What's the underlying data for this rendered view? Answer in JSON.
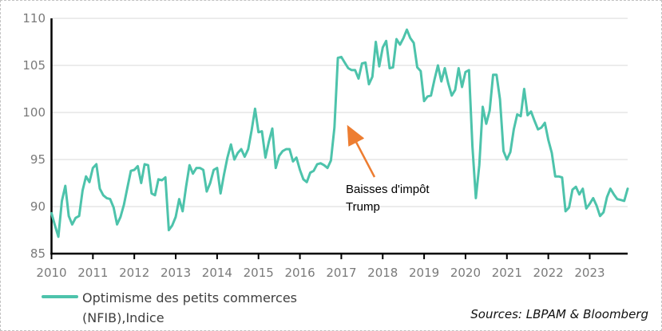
{
  "chart_data": {
    "type": "line",
    "title": "",
    "xlabel": "",
    "ylabel": "",
    "x_start": "2010-01",
    "x_end": "2023-12",
    "x_tick_labels": [
      "2010",
      "2011",
      "2012",
      "2013",
      "2014",
      "2015",
      "2016",
      "2017",
      "2018",
      "2019",
      "2020",
      "2021",
      "2022",
      "2023"
    ],
    "y_ticks": [
      85,
      90,
      95,
      100,
      105,
      110
    ],
    "ylim": [
      85,
      110
    ],
    "grid": "horizontal",
    "legend_position": "bottom-left",
    "series": [
      {
        "name": "Optimisme des petits commerces (NFIB),Indice",
        "color": "#4dc3ab",
        "frequency": "monthly",
        "values": [
          89.3,
          88.0,
          86.8,
          90.6,
          92.2,
          89.0,
          88.1,
          88.8,
          89.0,
          91.7,
          93.2,
          92.6,
          94.1,
          94.5,
          91.9,
          91.2,
          90.9,
          90.8,
          89.9,
          88.1,
          88.9,
          90.2,
          92.0,
          93.8,
          93.9,
          94.3,
          92.5,
          94.5,
          94.4,
          91.4,
          91.2,
          92.9,
          92.8,
          93.1,
          87.5,
          88.0,
          88.9,
          90.8,
          89.5,
          92.1,
          94.4,
          93.5,
          94.1,
          94.1,
          93.9,
          91.6,
          92.5,
          93.9,
          94.1,
          91.4,
          93.4,
          95.2,
          96.6,
          95.0,
          95.7,
          96.1,
          95.3,
          96.1,
          98.1,
          100.4,
          97.9,
          98.0,
          95.2,
          96.9,
          98.3,
          94.1,
          95.4,
          95.9,
          96.1,
          96.1,
          94.8,
          95.2,
          93.9,
          92.9,
          92.6,
          93.6,
          93.8,
          94.5,
          94.6,
          94.4,
          94.1,
          94.9,
          98.4,
          105.8,
          105.9,
          105.3,
          104.7,
          104.5,
          104.5,
          103.6,
          105.2,
          105.3,
          103.0,
          103.8,
          107.5,
          104.9,
          106.9,
          107.6,
          104.7,
          104.8,
          107.8,
          107.2,
          107.9,
          108.8,
          107.9,
          107.4,
          104.8,
          104.4,
          101.2,
          101.7,
          101.8,
          103.5,
          105.0,
          103.3,
          104.7,
          103.1,
          101.8,
          102.4,
          104.7,
          102.7,
          104.3,
          104.5,
          96.4,
          90.9,
          94.4,
          100.6,
          98.8,
          100.2,
          104.0,
          104.0,
          101.4,
          95.9,
          95.0,
          95.8,
          98.2,
          99.8,
          99.6,
          102.5,
          99.7,
          100.1,
          99.1,
          98.2,
          98.4,
          98.9,
          97.1,
          95.7,
          93.2,
          93.2,
          93.1,
          89.5,
          89.9,
          91.8,
          92.1,
          91.3,
          91.9,
          89.8,
          90.3,
          90.9,
          90.1,
          89.0,
          89.4,
          91.0,
          91.9,
          91.3,
          90.8,
          90.7,
          90.6,
          91.9
        ]
      }
    ],
    "annotations": [
      {
        "text": "Baisses d'impôt Trump",
        "arrow_color": "#ED7D31"
      }
    ]
  },
  "legend": {
    "label_line1": "Optimisme des petits commerces",
    "label_line2": "(NFIB),Indice"
  },
  "annotation": {
    "text_line1": "Baisses d'impôt",
    "text_line2": "Trump"
  },
  "source": {
    "text": "Sources: LBPAM & Bloomberg"
  },
  "colors": {
    "line": "#4dc3ab",
    "gridline": "#d9d9d9",
    "axis": "#000000",
    "tick_label": "#7a7a7a",
    "legend_text": "#3f3f3f",
    "arrow": "#ED7D31"
  }
}
